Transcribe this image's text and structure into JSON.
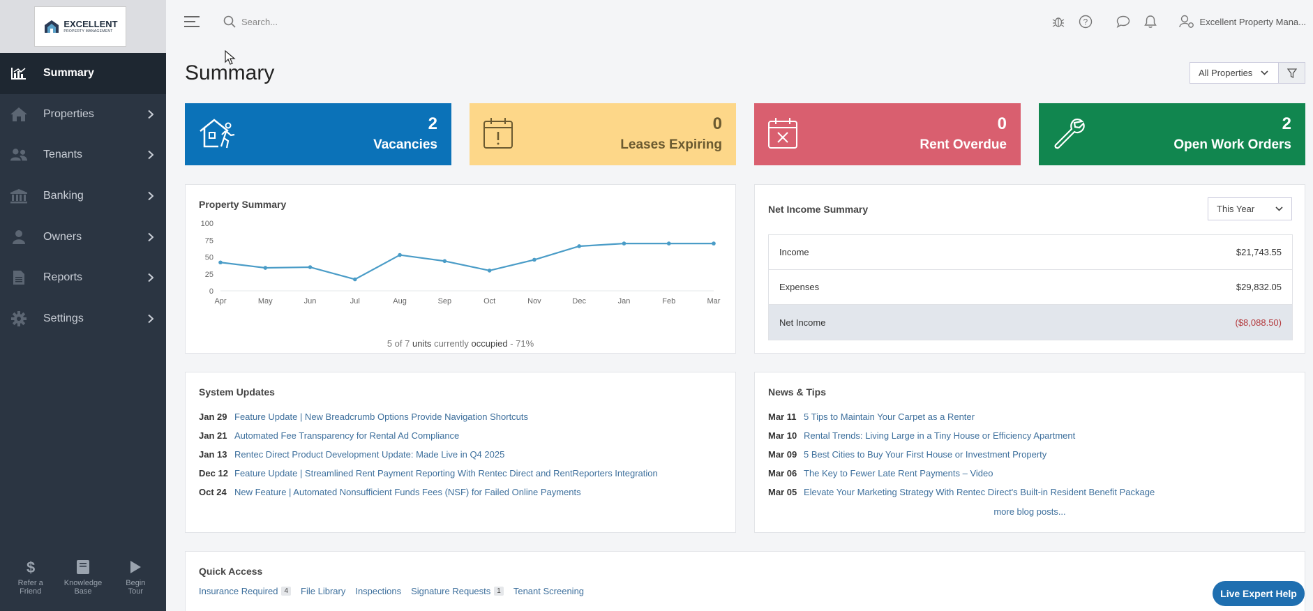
{
  "brand": {
    "logo_line1": "EXCELLENT",
    "logo_line2": "PROPERTY MANAGEMENT"
  },
  "sidebar": {
    "items": [
      {
        "label": "Summary",
        "icon": "chart-icon",
        "active": true
      },
      {
        "label": "Properties",
        "icon": "home-icon"
      },
      {
        "label": "Tenants",
        "icon": "users-icon"
      },
      {
        "label": "Banking",
        "icon": "bank-icon"
      },
      {
        "label": "Owners",
        "icon": "user-icon"
      },
      {
        "label": "Reports",
        "icon": "document-icon"
      },
      {
        "label": "Settings",
        "icon": "gear-icon"
      }
    ],
    "bottom": [
      {
        "line1": "Refer a",
        "line2": "Friend",
        "icon": "dollar-icon"
      },
      {
        "line1": "Knowledge",
        "line2": "Base",
        "icon": "book-icon"
      },
      {
        "line1": "Begin",
        "line2": "Tour",
        "icon": "play-icon"
      }
    ]
  },
  "header": {
    "search_placeholder": "Search...",
    "user_name": "Excellent Property Mana..."
  },
  "page": {
    "title": "Summary",
    "property_filter": "All Properties"
  },
  "stats": [
    {
      "value": "2",
      "label": "Vacancies"
    },
    {
      "value": "0",
      "label": "Leases Expiring"
    },
    {
      "value": "0",
      "label": "Rent Overdue"
    },
    {
      "value": "2",
      "label": "Open Work Orders"
    }
  ],
  "property_summary": {
    "title": "Property Summary",
    "caption_pre": "5 of 7",
    "caption_units": "units",
    "caption_mid": "currently",
    "caption_occ": "occupied",
    "caption_post": "- 71%"
  },
  "chart_data": {
    "type": "line",
    "title": "Property Summary",
    "categories": [
      "Apr",
      "May",
      "Jun",
      "Jul",
      "Aug",
      "Sep",
      "Oct",
      "Nov",
      "Dec",
      "Jan",
      "Feb",
      "Mar"
    ],
    "values": [
      42,
      34,
      35,
      17,
      53,
      44,
      30,
      46,
      66,
      70,
      70,
      70
    ],
    "y_ticks": [
      "0",
      "25",
      "50",
      "75",
      "100"
    ],
    "ylim": [
      0,
      100
    ],
    "xlabel": "",
    "ylabel": "",
    "color": "#4a9cc7"
  },
  "net_income": {
    "title": "Net Income Summary",
    "period": "This Year",
    "rows": [
      {
        "label": "Income",
        "value": "$21,743.55"
      },
      {
        "label": "Expenses",
        "value": "$29,832.05"
      },
      {
        "label": "Net Income",
        "value": "($8,088.50)"
      }
    ]
  },
  "system_updates": {
    "title": "System Updates",
    "items": [
      {
        "date": "Jan 29",
        "text": "Feature Update | New Breadcrumb Options Provide Navigation Shortcuts"
      },
      {
        "date": "Jan 21",
        "text": "Automated Fee Transparency for Rental Ad Compliance"
      },
      {
        "date": "Jan 13",
        "text": "Rentec Direct Product Development Update: Made Live in Q4 2025"
      },
      {
        "date": "Dec 12",
        "text": "Feature Update | Streamlined Rent Payment Reporting With Rentec Direct and RentReporters Integration"
      },
      {
        "date": "Oct 24",
        "text": "New Feature | Automated Nonsufficient Funds Fees (NSF) for Failed Online Payments"
      }
    ]
  },
  "news": {
    "title": "News & Tips",
    "items": [
      {
        "date": "Mar 11",
        "text": "5 Tips to Maintain Your Carpet as a Renter"
      },
      {
        "date": "Mar 10",
        "text": "Rental Trends: Living Large in a Tiny House or Efficiency Apartment"
      },
      {
        "date": "Mar 09",
        "text": "5 Best Cities to Buy Your First House or Investment Property"
      },
      {
        "date": "Mar 06",
        "text": "The Key to Fewer Late Rent Payments – Video"
      },
      {
        "date": "Mar 05",
        "text": "Elevate Your Marketing Strategy With Rentec Direct's Built-in Resident Benefit Package"
      }
    ],
    "more": "more blog posts..."
  },
  "quick_access": {
    "title": "Quick Access",
    "links": [
      {
        "label": "Insurance Required",
        "badge": "4"
      },
      {
        "label": "File Library",
        "badge": ""
      },
      {
        "label": "Inspections",
        "badge": ""
      },
      {
        "label": "Signature Requests",
        "badge": "1"
      },
      {
        "label": "Tenant Screening",
        "badge": ""
      }
    ]
  },
  "live_help": "Live Expert Help"
}
